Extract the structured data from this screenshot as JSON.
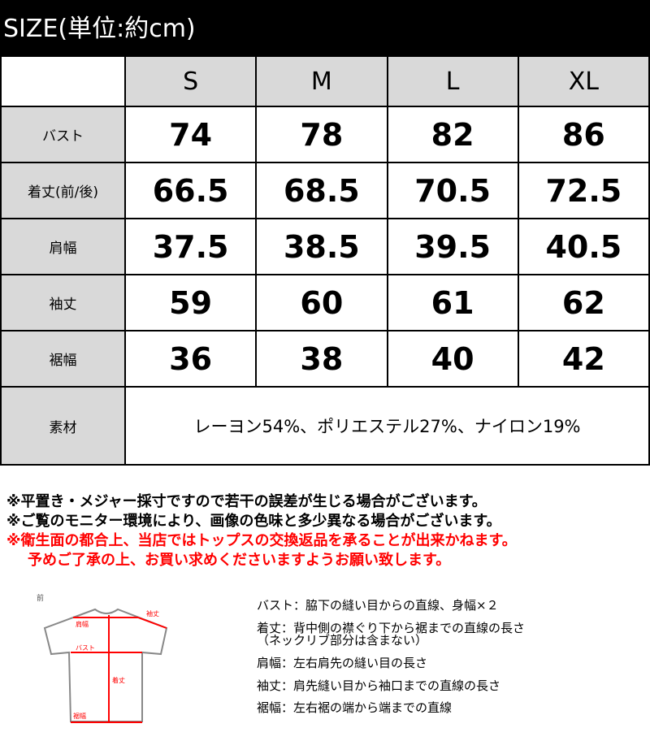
{
  "title": "SIZE(単位:約cm)",
  "sizes": [
    "S",
    "M",
    "L",
    "XL"
  ],
  "rows": [
    {
      "label": "バスト",
      "values": [
        "74",
        "78",
        "82",
        "86"
      ]
    },
    {
      "label": "着丈(前/後)",
      "values": [
        "66.5",
        "68.5",
        "70.5",
        "72.5"
      ]
    },
    {
      "label": "肩幅",
      "values": [
        "37.5",
        "38.5",
        "39.5",
        "40.5"
      ]
    },
    {
      "label": "袖丈",
      "values": [
        "59",
        "60",
        "61",
        "62"
      ]
    },
    {
      "label": "裾幅",
      "values": [
        "36",
        "38",
        "40",
        "42"
      ]
    }
  ],
  "material": {
    "label": "素材",
    "value": "レーヨン54%、ポリエステル27%、ナイロン19%"
  },
  "notes": [
    "※平置き・メジャー採寸ですので若干の誤差が生じる場合がございます。",
    "※ご覧のモニター環境により、画像の色味と多少異なる場合がございます。"
  ],
  "warning": [
    "※衛生面の都合上、当店ではトップスの交換返品を承ることが出来かねます。",
    "予めご了承の上、お買い求めくださいますようお願い致します。"
  ],
  "diagram": {
    "view": "前",
    "labels": {
      "sleeve": "袖丈",
      "shoulder": "肩幅",
      "bust": "バスト",
      "length": "着丈",
      "hem": "裾幅"
    }
  },
  "descriptions": [
    "バスト：脇下の縫い目からの直線、身幅×２",
    "着丈：背中側の襟ぐり下から裾までの直線の長さ",
    "（ネックリブ部分は含まない）",
    "肩幅：左右肩先の縫い目の長さ",
    "袖丈：肩先縫い目から袖口までの直線の長さ",
    "裾幅：左右裾の端から端までの直線"
  ],
  "colors": {
    "header": "#000000",
    "cell_gray": "#d9d9d9",
    "warning": "#ff0000",
    "measure_line": "#ff0000"
  }
}
